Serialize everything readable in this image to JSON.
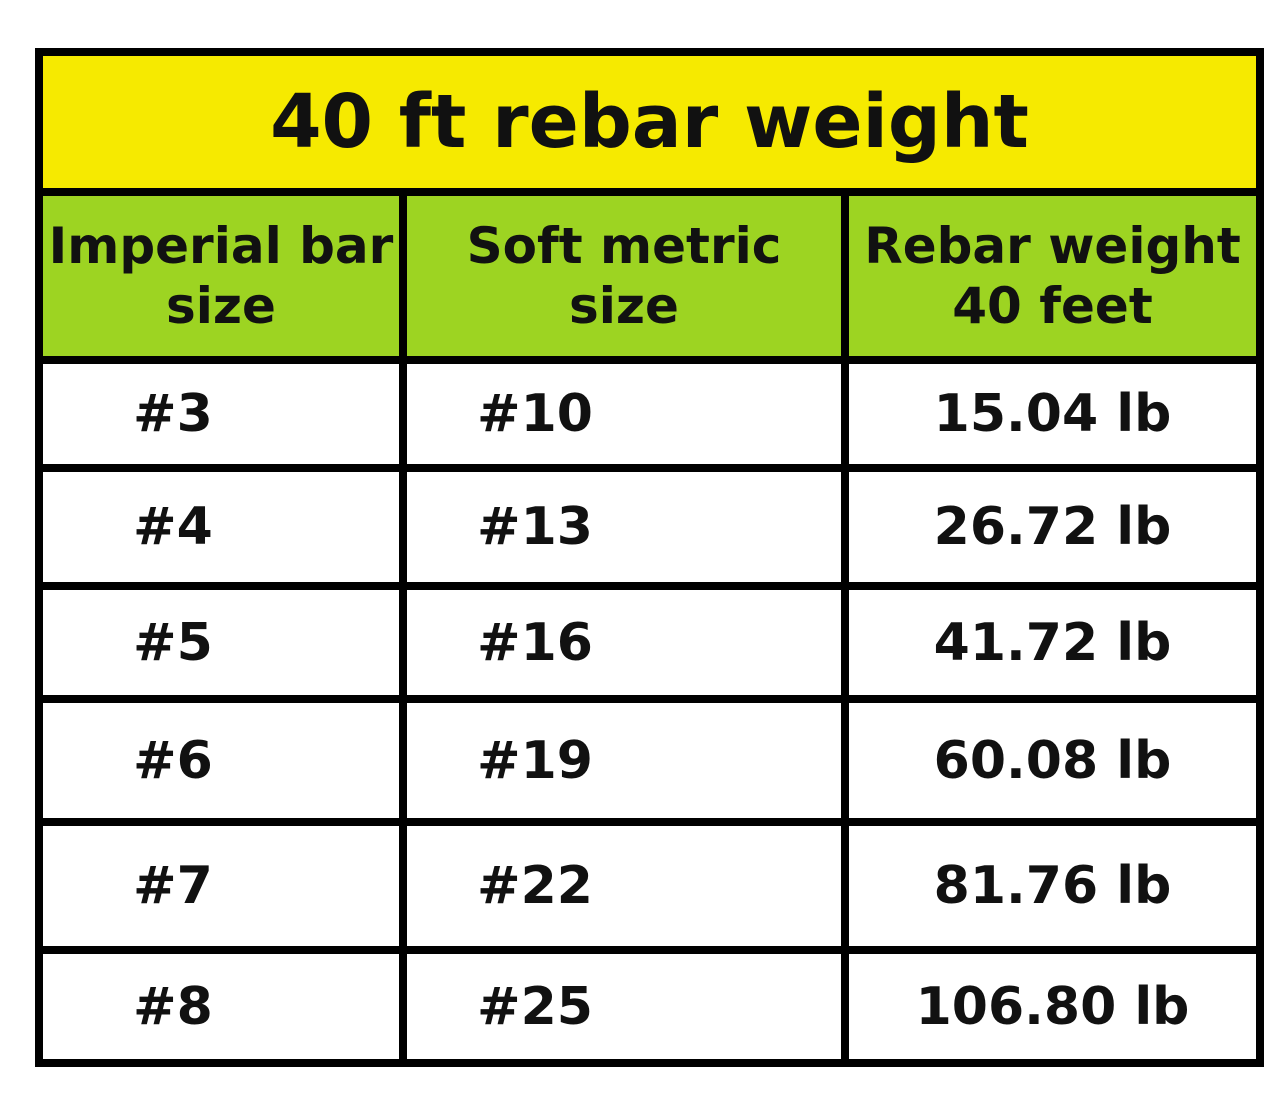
{
  "table": {
    "title": "40 ft rebar weight",
    "header": [
      "Imperial bar\nsize",
      "Soft metric\nsize",
      "Rebar weight\n40 feet"
    ],
    "rows": [
      [
        "#3",
        "#10",
        "15.04 lb"
      ],
      [
        "#4",
        "#13",
        "26.72 lb"
      ],
      [
        "#5",
        "#16",
        "41.72 lb"
      ],
      [
        "#6",
        "#19",
        "60.08 lb"
      ],
      [
        "#7",
        "#22",
        "81.76 lb"
      ],
      [
        "#8",
        "#25",
        "106.80 lb"
      ]
    ]
  }
}
